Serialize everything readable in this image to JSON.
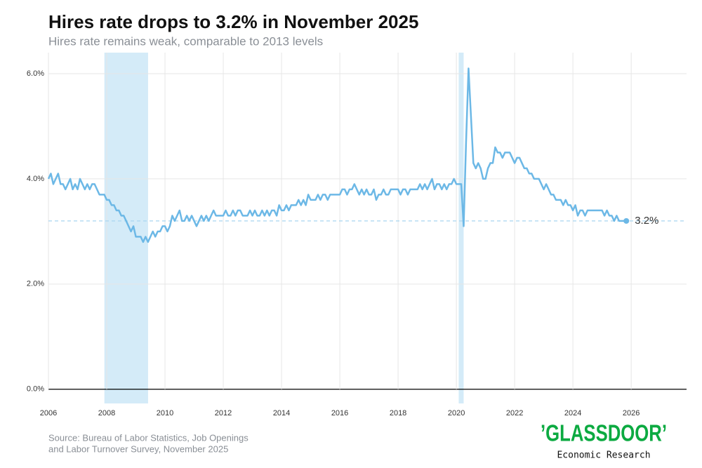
{
  "chart_data": {
    "type": "line",
    "title": "Hires rate drops to 3.2% in November 2025",
    "subtitle": "Hires rate remains weak, comparable to 2013 levels",
    "source": [
      "Source: Bureau of Labor Statistics, Job Openings",
      "and Labor Turnover Survey, November 2025"
    ],
    "logo": "’GLASSDOOR’",
    "logo_subtitle": "Economic Research",
    "xlim": [
      2006,
      2027.9
    ],
    "ylim": [
      -0.27,
      6.4
    ],
    "xticks": [
      2006,
      2008,
      2010,
      2012,
      2014,
      2016,
      2018,
      2020,
      2022,
      2024,
      2026
    ],
    "yticks": [
      {
        "value": 0,
        "label": "0.0%"
      },
      {
        "value": 2,
        "label": "2.0%"
      },
      {
        "value": 4,
        "label": "4.0%"
      },
      {
        "value": 6,
        "label": "6.0%"
      }
    ],
    "grid": true,
    "shaded_periods": [
      [
        2007.92,
        2009.42
      ],
      [
        2020.08,
        2020.25
      ]
    ],
    "shade_color": "#d4ebf8",
    "reference_line": {
      "value": 3.2,
      "label": "3.2%"
    },
    "x": [
      2006,
      2006.083,
      2006.167,
      2006.25,
      2006.333,
      2006.417,
      2006.5,
      2006.583,
      2006.667,
      2006.75,
      2006.833,
      2006.917,
      2007,
      2007.083,
      2007.167,
      2007.25,
      2007.333,
      2007.417,
      2007.5,
      2007.583,
      2007.667,
      2007.75,
      2007.833,
      2007.917,
      2008,
      2008.083,
      2008.167,
      2008.25,
      2008.333,
      2008.417,
      2008.5,
      2008.583,
      2008.667,
      2008.75,
      2008.833,
      2008.917,
      2009,
      2009.083,
      2009.167,
      2009.25,
      2009.333,
      2009.417,
      2009.5,
      2009.583,
      2009.667,
      2009.75,
      2009.833,
      2009.917,
      2010,
      2010.083,
      2010.167,
      2010.25,
      2010.333,
      2010.417,
      2010.5,
      2010.583,
      2010.667,
      2010.75,
      2010.833,
      2010.917,
      2011,
      2011.083,
      2011.167,
      2011.25,
      2011.333,
      2011.417,
      2011.5,
      2011.583,
      2011.667,
      2011.75,
      2011.833,
      2011.917,
      2012,
      2012.083,
      2012.167,
      2012.25,
      2012.333,
      2012.417,
      2012.5,
      2012.583,
      2012.667,
      2012.75,
      2012.833,
      2012.917,
      2013,
      2013.083,
      2013.167,
      2013.25,
      2013.333,
      2013.417,
      2013.5,
      2013.583,
      2013.667,
      2013.75,
      2013.833,
      2013.917,
      2014,
      2014.083,
      2014.167,
      2014.25,
      2014.333,
      2014.417,
      2014.5,
      2014.583,
      2014.667,
      2014.75,
      2014.833,
      2014.917,
      2015,
      2015.083,
      2015.167,
      2015.25,
      2015.333,
      2015.417,
      2015.5,
      2015.583,
      2015.667,
      2015.75,
      2015.833,
      2015.917,
      2016,
      2016.083,
      2016.167,
      2016.25,
      2016.333,
      2016.417,
      2016.5,
      2016.583,
      2016.667,
      2016.75,
      2016.833,
      2016.917,
      2017,
      2017.083,
      2017.167,
      2017.25,
      2017.333,
      2017.417,
      2017.5,
      2017.583,
      2017.667,
      2017.75,
      2017.833,
      2017.917,
      2018,
      2018.083,
      2018.167,
      2018.25,
      2018.333,
      2018.417,
      2018.5,
      2018.583,
      2018.667,
      2018.75,
      2018.833,
      2018.917,
      2019,
      2019.083,
      2019.167,
      2019.25,
      2019.333,
      2019.417,
      2019.5,
      2019.583,
      2019.667,
      2019.75,
      2019.833,
      2019.917,
      2020,
      2020.083,
      2020.167,
      2020.25,
      2020.333,
      2020.417,
      2020.5,
      2020.583,
      2020.667,
      2020.75,
      2020.833,
      2020.917,
      2021,
      2021.083,
      2021.167,
      2021.25,
      2021.333,
      2021.417,
      2021.5,
      2021.583,
      2021.667,
      2021.75,
      2021.833,
      2021.917,
      2022,
      2022.083,
      2022.167,
      2022.25,
      2022.333,
      2022.417,
      2022.5,
      2022.583,
      2022.667,
      2022.75,
      2022.833,
      2022.917,
      2023,
      2023.083,
      2023.167,
      2023.25,
      2023.333,
      2023.417,
      2023.5,
      2023.583,
      2023.667,
      2023.75,
      2023.833,
      2023.917,
      2024,
      2024.083,
      2024.167,
      2024.25,
      2024.333,
      2024.417,
      2024.5,
      2024.583,
      2024.667,
      2024.75,
      2024.833,
      2024.917,
      2025,
      2025.083,
      2025.167,
      2025.25,
      2025.333,
      2025.417,
      2025.5,
      2025.583,
      2025.667,
      2025.75,
      2025.833
    ],
    "series": [
      {
        "name": "Hires rate",
        "color": "#6cb8e6",
        "values": [
          4.0,
          4.1,
          3.9,
          4.0,
          4.1,
          3.9,
          3.9,
          3.8,
          3.9,
          4.0,
          3.8,
          3.9,
          3.8,
          4.0,
          3.9,
          3.8,
          3.9,
          3.8,
          3.9,
          3.9,
          3.8,
          3.7,
          3.7,
          3.7,
          3.6,
          3.6,
          3.5,
          3.5,
          3.4,
          3.4,
          3.3,
          3.3,
          3.2,
          3.1,
          3.0,
          3.1,
          2.9,
          2.9,
          2.9,
          2.8,
          2.9,
          2.8,
          2.9,
          3.0,
          2.9,
          3.0,
          3.0,
          3.1,
          3.1,
          3.0,
          3.1,
          3.3,
          3.2,
          3.3,
          3.4,
          3.2,
          3.2,
          3.3,
          3.2,
          3.3,
          3.2,
          3.1,
          3.2,
          3.3,
          3.2,
          3.3,
          3.2,
          3.3,
          3.4,
          3.3,
          3.3,
          3.3,
          3.3,
          3.4,
          3.3,
          3.3,
          3.4,
          3.3,
          3.4,
          3.4,
          3.3,
          3.3,
          3.3,
          3.4,
          3.3,
          3.4,
          3.3,
          3.3,
          3.4,
          3.3,
          3.4,
          3.3,
          3.4,
          3.4,
          3.3,
          3.5,
          3.4,
          3.4,
          3.5,
          3.4,
          3.5,
          3.5,
          3.5,
          3.6,
          3.5,
          3.6,
          3.5,
          3.7,
          3.6,
          3.6,
          3.6,
          3.7,
          3.6,
          3.7,
          3.7,
          3.6,
          3.7,
          3.7,
          3.7,
          3.7,
          3.7,
          3.8,
          3.8,
          3.7,
          3.8,
          3.8,
          3.9,
          3.8,
          3.7,
          3.8,
          3.7,
          3.8,
          3.7,
          3.7,
          3.8,
          3.6,
          3.7,
          3.7,
          3.8,
          3.7,
          3.7,
          3.8,
          3.8,
          3.8,
          3.8,
          3.7,
          3.8,
          3.8,
          3.7,
          3.8,
          3.8,
          3.8,
          3.8,
          3.9,
          3.8,
          3.9,
          3.8,
          3.9,
          4.0,
          3.8,
          3.9,
          3.9,
          3.8,
          3.9,
          3.8,
          3.9,
          3.9,
          4.0,
          3.9,
          3.9,
          3.9,
          3.1,
          4.7,
          6.1,
          5.2,
          4.3,
          4.2,
          4.3,
          4.2,
          4.0,
          4.0,
          4.2,
          4.3,
          4.3,
          4.6,
          4.5,
          4.5,
          4.4,
          4.5,
          4.5,
          4.5,
          4.4,
          4.3,
          4.4,
          4.4,
          4.3,
          4.2,
          4.2,
          4.1,
          4.1,
          4.0,
          4.0,
          4.0,
          3.9,
          3.8,
          3.9,
          3.8,
          3.7,
          3.7,
          3.6,
          3.6,
          3.6,
          3.5,
          3.6,
          3.5,
          3.5,
          3.4,
          3.5,
          3.3,
          3.4,
          3.4,
          3.3,
          3.4,
          3.4,
          3.4,
          3.4,
          3.4,
          3.4,
          3.4,
          3.3,
          3.4,
          3.3,
          3.3,
          3.2,
          3.3,
          3.2,
          3.2,
          3.2,
          3.2
        ]
      }
    ]
  }
}
